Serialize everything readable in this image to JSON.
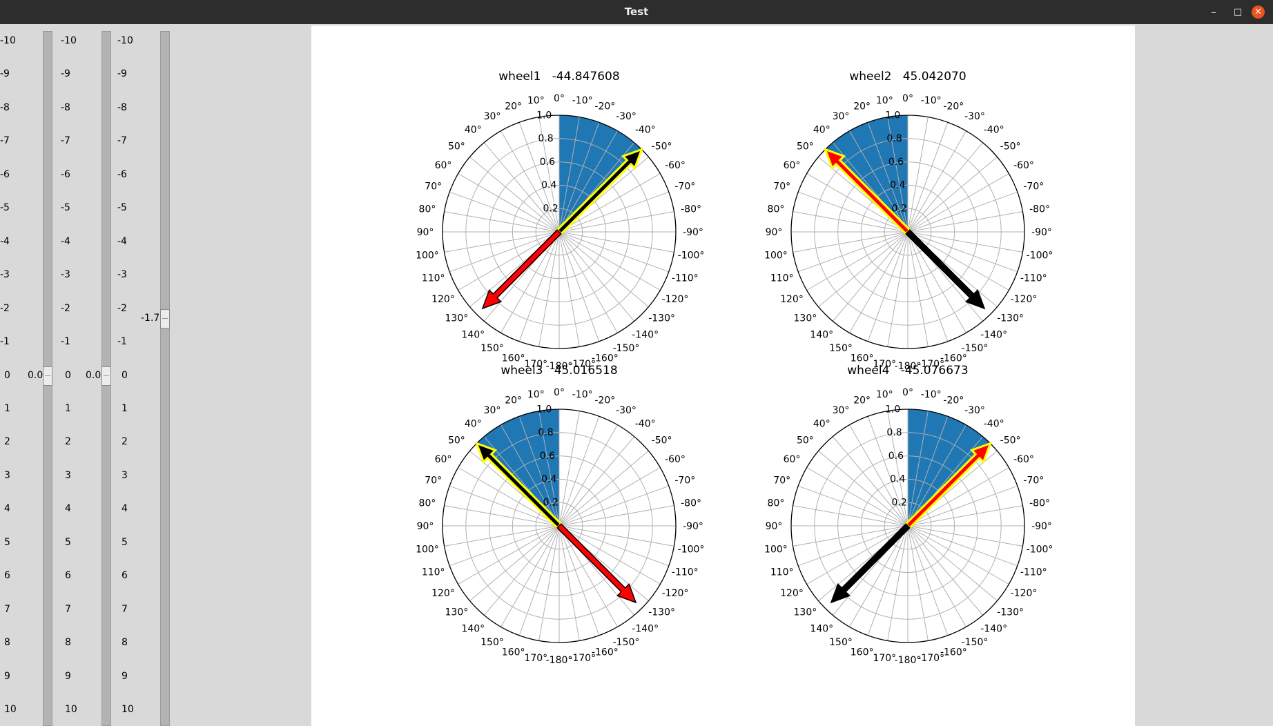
{
  "window": {
    "title": "Test"
  },
  "titlebar_icons": [
    "minimize-icon",
    "maximize-icon",
    "close-icon"
  ],
  "sliders": [
    {
      "value_text": "0.0",
      "value": 0.0,
      "from": -10,
      "to": 10,
      "show_value": true
    },
    {
      "value_text": "0.0",
      "value": 0.0,
      "from": -10,
      "to": 10,
      "show_value": true
    },
    {
      "value_text": "-1.7",
      "value": -1.7,
      "from": -10,
      "to": 10,
      "show_value": true
    }
  ],
  "slider_ticks": [
    "-10",
    "-9",
    "-8",
    "-7",
    "-6",
    "-5",
    "-4",
    "-3",
    "-2",
    "-1",
    "0",
    "1",
    "2",
    "3",
    "4",
    "5",
    "6",
    "7",
    "8",
    "9",
    "10"
  ],
  "chart_data": [
    {
      "type": "polar",
      "title": "wheel1   -44.847608",
      "theta_zero": "top",
      "theta_direction": "counterclockwise",
      "rmax": 1.0,
      "rticks": [
        "0.2",
        "0.4",
        "0.6",
        "0.8",
        "1.0"
      ],
      "sector": {
        "from_deg": 0,
        "to_deg": -45,
        "radius": 1.0,
        "color": "#1f77b4"
      },
      "arrows": [
        {
          "angle_deg": -45,
          "length": 1.0,
          "color": "#000000",
          "edge": "#ffff00"
        },
        {
          "angle_deg": 135,
          "length": 0.93,
          "color": "#ff0000",
          "edge": "#000000"
        }
      ]
    },
    {
      "type": "polar",
      "title": "wheel2   45.042070",
      "theta_zero": "top",
      "theta_direction": "counterclockwise",
      "rmax": 1.0,
      "rticks": [
        "0.2",
        "0.4",
        "0.6",
        "0.8",
        "1.0"
      ],
      "sector": {
        "from_deg": 0,
        "to_deg": 45,
        "radius": 1.0,
        "color": "#1f77b4"
      },
      "arrows": [
        {
          "angle_deg": 45,
          "length": 1.0,
          "color": "#ff0000",
          "edge": "#ffff00"
        },
        {
          "angle_deg": -135,
          "length": 0.93,
          "color": "#000000",
          "edge": "#000000"
        }
      ]
    },
    {
      "type": "polar",
      "title": "wheel3   45.016518",
      "theta_zero": "top",
      "theta_direction": "counterclockwise",
      "rmax": 1.0,
      "rticks": [
        "0.2",
        "0.4",
        "0.6",
        "0.8",
        "1.0"
      ],
      "sector": {
        "from_deg": 0,
        "to_deg": 45,
        "radius": 1.0,
        "color": "#1f77b4"
      },
      "arrows": [
        {
          "angle_deg": 45,
          "length": 1.0,
          "color": "#000000",
          "edge": "#ffff00"
        },
        {
          "angle_deg": -135,
          "length": 0.93,
          "color": "#ff0000",
          "edge": "#000000"
        }
      ]
    },
    {
      "type": "polar",
      "title": "wheel4   -45.076673",
      "theta_zero": "top",
      "theta_direction": "counterclockwise",
      "rmax": 1.0,
      "rticks": [
        "0.2",
        "0.4",
        "0.6",
        "0.8",
        "1.0"
      ],
      "sector": {
        "from_deg": 0,
        "to_deg": -45,
        "radius": 1.0,
        "color": "#1f77b4"
      },
      "arrows": [
        {
          "angle_deg": -45,
          "length": 1.0,
          "color": "#ff0000",
          "edge": "#ffff00"
        },
        {
          "angle_deg": 135,
          "length": 0.93,
          "color": "#000000",
          "edge": "#000000"
        }
      ]
    }
  ],
  "angle_tick_labels": [
    "0°",
    "10°",
    "20°",
    "30°",
    "40°",
    "50°",
    "60°",
    "70°",
    "80°",
    "90°",
    "100°",
    "110°",
    "120°",
    "130°",
    "140°",
    "150°",
    "160°",
    "170°",
    "-180°",
    "-170°",
    "-160°",
    "-150°",
    "-140°",
    "-130°",
    "-120°",
    "-110°",
    "-100°",
    "-90°",
    "-80°",
    "-70°",
    "-60°",
    "-50°",
    "-40°",
    "-30°",
    "-20°",
    "-10°"
  ],
  "colors": {
    "sector": "#1f77b4",
    "plot_bg": "#ffffff",
    "panel_bg": "#d9d9d9",
    "titlebar": "#2d2d2d",
    "close": "#e95420"
  }
}
